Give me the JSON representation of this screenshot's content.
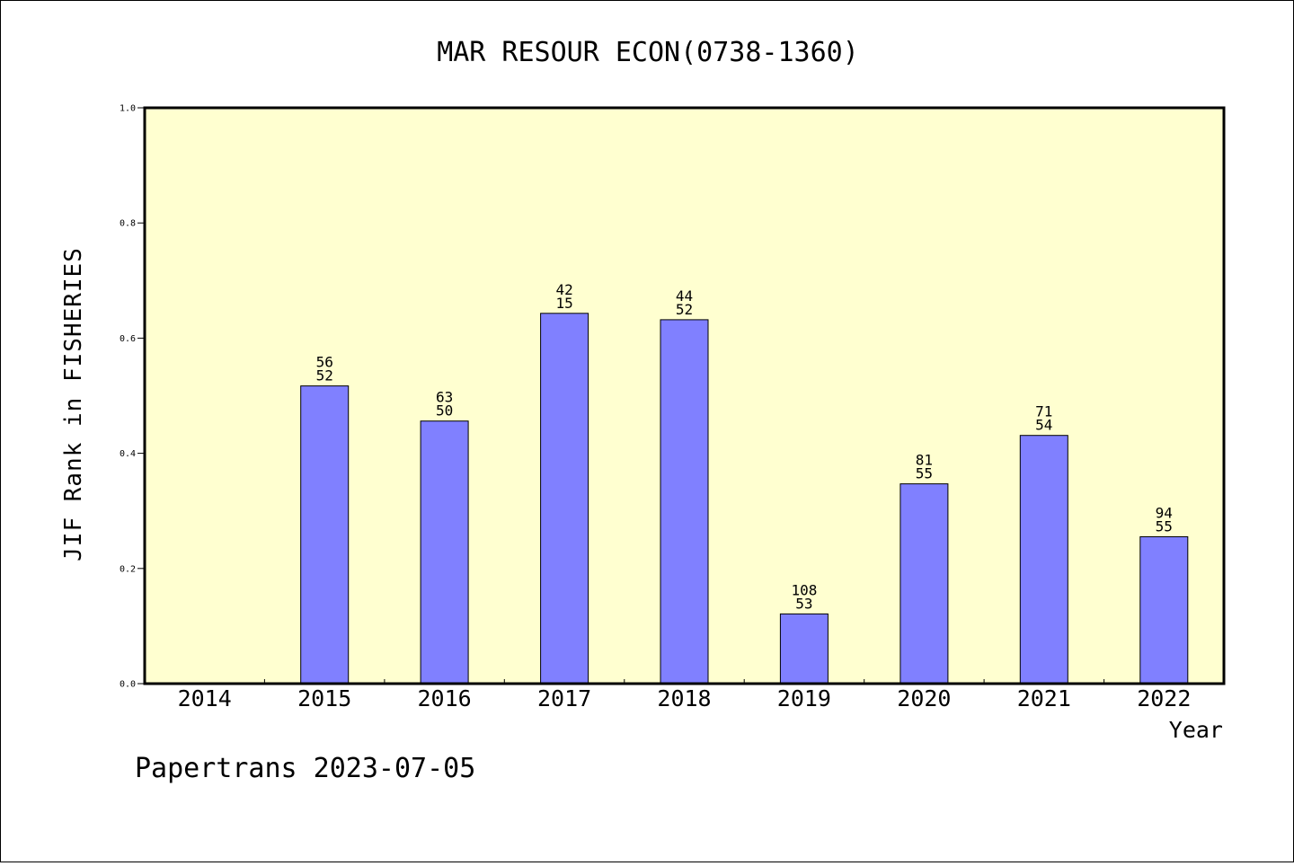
{
  "chart_data": {
    "type": "bar",
    "title": "MAR RESOUR ECON(0738-1360)",
    "xlabel": "Year",
    "ylabel": "JIF Rank in FISHERIES",
    "ylim": [
      0,
      1.0
    ],
    "yticks": [
      "0.0",
      "0.2",
      "0.4",
      "0.6",
      "0.8",
      "1.0"
    ],
    "categories": [
      "2014",
      "2015",
      "2016",
      "2017",
      "2018",
      "2019",
      "2020",
      "2021",
      "2022"
    ],
    "values": [
      null,
      0.517,
      0.456,
      0.643,
      0.632,
      0.121,
      0.347,
      0.431,
      0.255
    ],
    "bar_labels_top": [
      "",
      "56",
      "63",
      "42",
      "44",
      "108",
      "81",
      "71",
      "94"
    ],
    "bar_labels_bottom": [
      "",
      "52",
      "50",
      "15",
      "52",
      "53",
      "55",
      "54",
      "55"
    ],
    "grid": false,
    "colors": {
      "plot_background": "#ffffd0",
      "bar_fill": "#8080ff",
      "bar_stroke": "#000000"
    }
  },
  "footer": {
    "text": "Papertrans 2023-07-05"
  }
}
